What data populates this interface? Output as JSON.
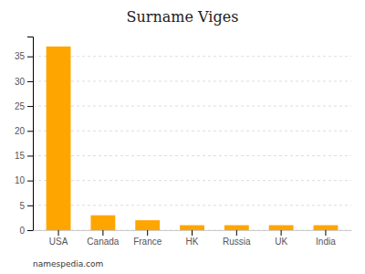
{
  "chart_data": {
    "type": "bar",
    "title": "Surname Viges",
    "categories": [
      "USA",
      "Canada",
      "France",
      "HK",
      "Russia",
      "UK",
      "India"
    ],
    "values": [
      37,
      3,
      2,
      1,
      1,
      1,
      1
    ],
    "color": "#FFA500",
    "ylim": [
      0,
      39
    ],
    "yticks": [
      0,
      5,
      10,
      15,
      20,
      25,
      30,
      35
    ],
    "grid": true,
    "annotations": [
      "namespedia.com"
    ]
  }
}
